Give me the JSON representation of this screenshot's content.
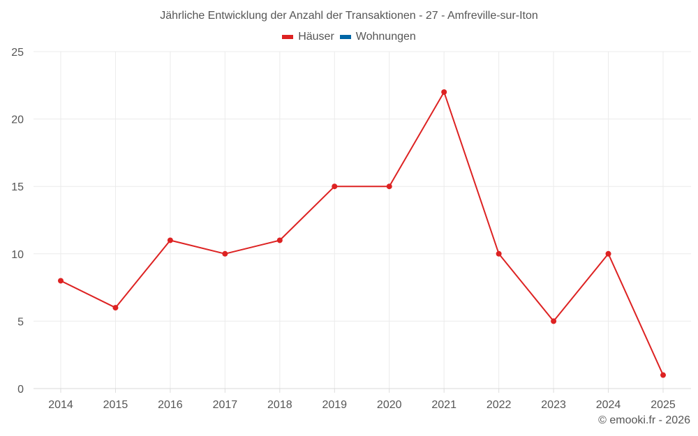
{
  "chart_data": {
    "type": "line",
    "title": "Jährliche Entwicklung der Anzahl der Transaktionen - 27 - Amfreville-sur-Iton",
    "categories": [
      "2014",
      "2015",
      "2016",
      "2017",
      "2018",
      "2019",
      "2020",
      "2021",
      "2022",
      "2023",
      "2024",
      "2025"
    ],
    "series": [
      {
        "name": "Häuser",
        "color": "#dd2222",
        "values": [
          8,
          6,
          11,
          10,
          11,
          15,
          15,
          22,
          10,
          5,
          10,
          1
        ]
      },
      {
        "name": "Wohnungen",
        "color": "#0066a6",
        "values": []
      }
    ],
    "xlabel": "",
    "ylabel": "",
    "ylim": [
      0,
      25
    ],
    "yticks": [
      0,
      5,
      10,
      15,
      20,
      25
    ],
    "grid": true,
    "legend_position": "top-center"
  },
  "legend": [
    {
      "label": "Häuser",
      "color": "#dd2222"
    },
    {
      "label": "Wohnungen",
      "color": "#0066a6"
    }
  ],
  "credit": "© emooki.fr - 2026"
}
